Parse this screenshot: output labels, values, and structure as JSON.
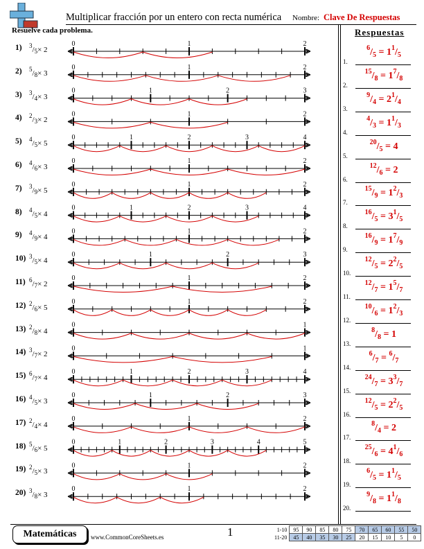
{
  "header": {
    "title": "Multiplicar fracción por un entero con recta numérica",
    "name_label": "Nombre:",
    "name_value": "Clave De Respuestas"
  },
  "instructions": "Resuelve cada problema.",
  "answers_heading": "Respuestas",
  "problems": [
    {
      "num": "1)",
      "n": "3",
      "d": "5",
      "op": "× 2",
      "ans": {
        "n": "6",
        "d": "5",
        "w": "1",
        "fn": "1",
        "fd": "5"
      }
    },
    {
      "num": "2)",
      "n": "5",
      "d": "8",
      "op": "× 3",
      "ans": {
        "n": "15",
        "d": "8",
        "w": "1",
        "fn": "7",
        "fd": "8"
      }
    },
    {
      "num": "3)",
      "n": "3",
      "d": "4",
      "op": "× 3",
      "ans": {
        "n": "9",
        "d": "4",
        "w": "2",
        "fn": "1",
        "fd": "4"
      }
    },
    {
      "num": "4)",
      "n": "2",
      "d": "3",
      "op": "× 2",
      "ans": {
        "n": "4",
        "d": "3",
        "w": "1",
        "fn": "1",
        "fd": "3"
      }
    },
    {
      "num": "5)",
      "n": "4",
      "d": "5",
      "op": "× 5",
      "ans": {
        "n": "20",
        "d": "5",
        "w": "4",
        "fn": "",
        "fd": ""
      }
    },
    {
      "num": "6)",
      "n": "4",
      "d": "6",
      "op": "× 3",
      "ans": {
        "n": "12",
        "d": "6",
        "w": "2",
        "fn": "",
        "fd": ""
      }
    },
    {
      "num": "7)",
      "n": "3",
      "d": "9",
      "op": "× 5",
      "ans": {
        "n": "15",
        "d": "9",
        "w": "1",
        "fn": "2",
        "fd": "3"
      }
    },
    {
      "num": "8)",
      "n": "4",
      "d": "5",
      "op": "× 4",
      "ans": {
        "n": "16",
        "d": "5",
        "w": "3",
        "fn": "1",
        "fd": "5"
      }
    },
    {
      "num": "9)",
      "n": "4",
      "d": "9",
      "op": "× 4",
      "ans": {
        "n": "16",
        "d": "9",
        "w": "1",
        "fn": "7",
        "fd": "9"
      }
    },
    {
      "num": "10)",
      "n": "3",
      "d": "5",
      "op": "× 4",
      "ans": {
        "n": "12",
        "d": "5",
        "w": "2",
        "fn": "2",
        "fd": "5"
      }
    },
    {
      "num": "11)",
      "n": "6",
      "d": "7",
      "op": "× 2",
      "ans": {
        "n": "12",
        "d": "7",
        "w": "1",
        "fn": "5",
        "fd": "7"
      }
    },
    {
      "num": "12)",
      "n": "2",
      "d": "6",
      "op": "× 5",
      "ans": {
        "n": "10",
        "d": "6",
        "w": "1",
        "fn": "2",
        "fd": "3"
      }
    },
    {
      "num": "13)",
      "n": "2",
      "d": "8",
      "op": "× 4",
      "ans": {
        "n": "8",
        "d": "8",
        "w": "1",
        "fn": "",
        "fd": ""
      }
    },
    {
      "num": "14)",
      "n": "3",
      "d": "7",
      "op": "× 2",
      "ans": {
        "n": "6",
        "d": "7",
        "w": "",
        "fn": "6",
        "fd": "7"
      }
    },
    {
      "num": "15)",
      "n": "6",
      "d": "7",
      "op": "× 4",
      "ans": {
        "n": "24",
        "d": "7",
        "w": "3",
        "fn": "3",
        "fd": "7"
      }
    },
    {
      "num": "16)",
      "n": "4",
      "d": "5",
      "op": "× 3",
      "ans": {
        "n": "12",
        "d": "5",
        "w": "2",
        "fn": "2",
        "fd": "5"
      }
    },
    {
      "num": "17)",
      "n": "2",
      "d": "4",
      "op": "× 4",
      "ans": {
        "n": "8",
        "d": "4",
        "w": "2",
        "fn": "",
        "fd": ""
      }
    },
    {
      "num": "18)",
      "n": "5",
      "d": "6",
      "op": "× 5",
      "ans": {
        "n": "25",
        "d": "6",
        "w": "4",
        "fn": "1",
        "fd": "6"
      }
    },
    {
      "num": "19)",
      "n": "2",
      "d": "5",
      "op": "× 3",
      "ans": {
        "n": "6",
        "d": "5",
        "w": "1",
        "fn": "1",
        "fd": "5"
      }
    },
    {
      "num": "20)",
      "n": "3",
      "d": "8",
      "op": "× 3",
      "ans": {
        "n": "9",
        "d": "8",
        "w": "1",
        "fn": "1",
        "fd": "8"
      }
    }
  ],
  "answer_numbers": [
    "1.",
    "2.",
    "3.",
    "4.",
    "5.",
    "6.",
    "7.",
    "8.",
    "9.",
    "10.",
    "11.",
    "12.",
    "13.",
    "14.",
    "15.",
    "16.",
    "17.",
    "18.",
    "19.",
    "20."
  ],
  "footer": {
    "subject": "Matemáticas",
    "site": "www.CommonCoreSheets.es",
    "page": "1",
    "score_rows": [
      {
        "label": "1-10",
        "cells": [
          "95",
          "90",
          "85",
          "80",
          "75",
          "70",
          "65",
          "60",
          "55",
          "50"
        ]
      },
      {
        "label": "11-20",
        "cells": [
          "45",
          "40",
          "35",
          "30",
          "25",
          "20",
          "15",
          "10",
          "5",
          "0"
        ]
      }
    ]
  },
  "colors": {
    "answer": "#d40000",
    "highlight": "#b7cbe6",
    "logo_blue": "#6ab0dc",
    "logo_red": "#c0392b"
  }
}
